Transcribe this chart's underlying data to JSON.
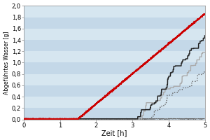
{
  "title": "",
  "xlabel": "Zeit [h]",
  "ylabel": "Abgeführtes Wasser [g]",
  "xlim": [
    0,
    5
  ],
  "ylim": [
    0,
    2.0
  ],
  "yticks": [
    0.0,
    0.2,
    0.4,
    0.6,
    0.8,
    1.0,
    1.2,
    1.4,
    1.6,
    1.8,
    2.0
  ],
  "xticks": [
    0,
    1,
    2,
    3,
    4,
    5
  ],
  "bg_stripe_light": "#d6e6f0",
  "bg_stripe_dark": "#c4d8e8",
  "red_color": "#cc0000",
  "black_color": "#222222",
  "gray_color": "#aaaaaa",
  "dot_color": "#666666",
  "fig_bg": "#ffffff"
}
